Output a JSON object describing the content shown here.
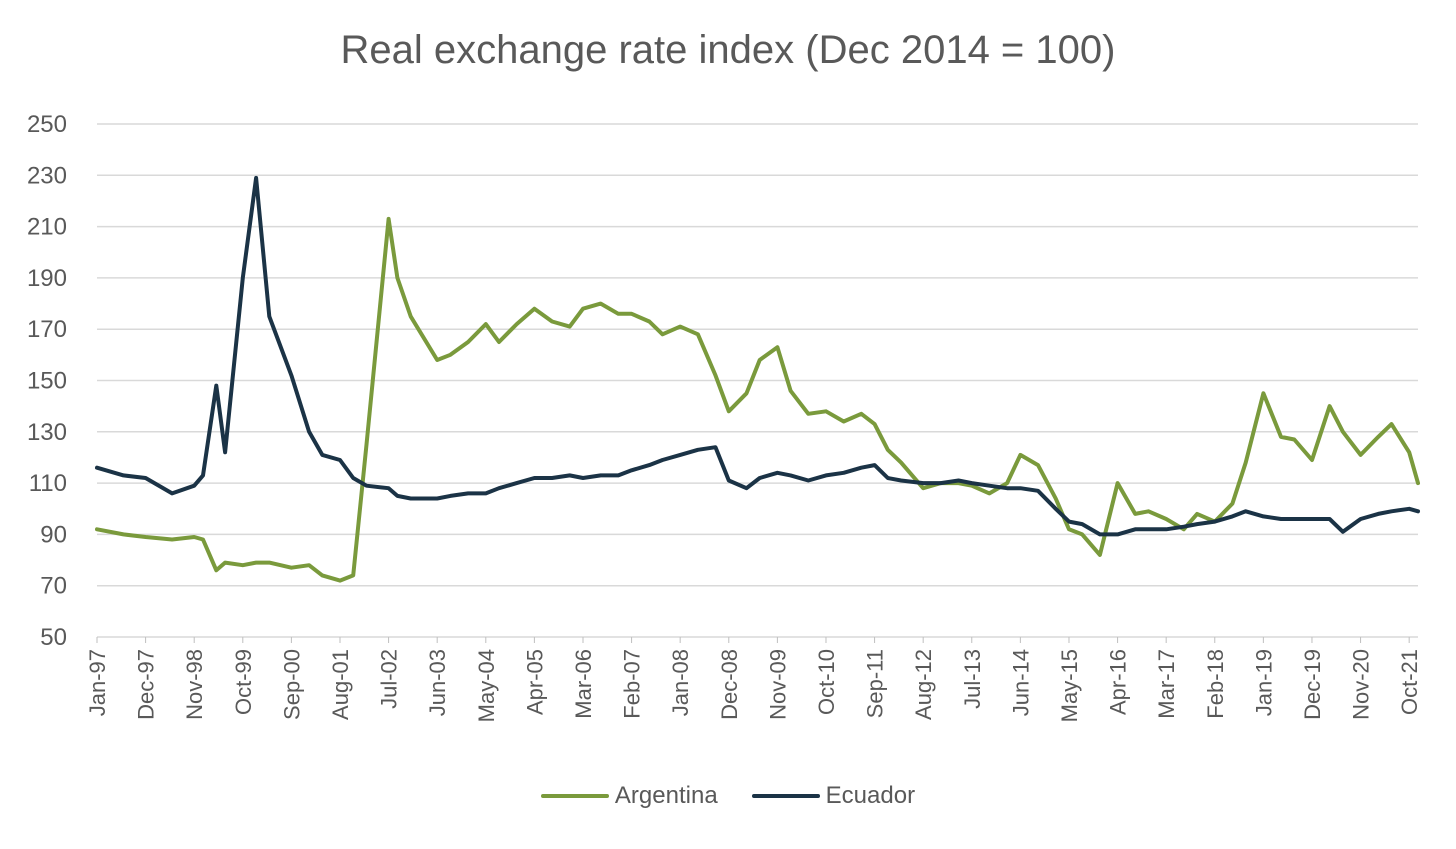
{
  "chart_data": {
    "type": "line",
    "title": "Real exchange rate index (Dec 2014 = 100)",
    "xlabel": "",
    "ylabel": "",
    "ylim": [
      50,
      250
    ],
    "yticks": [
      50,
      70,
      90,
      110,
      130,
      150,
      170,
      190,
      210,
      230,
      250
    ],
    "grid": true,
    "legend_position": "bottom",
    "x_tick_labels": [
      "Jan-97",
      "Dec-97",
      "Nov-98",
      "Oct-99",
      "Sep-00",
      "Aug-01",
      "Jul-02",
      "Jun-03",
      "May-04",
      "Apr-05",
      "Mar-06",
      "Feb-07",
      "Jan-08",
      "Dec-08",
      "Nov-09",
      "Oct-10",
      "Sep-11",
      "Aug-12",
      "Jul-13",
      "Jun-14",
      "May-15",
      "Apr-16",
      "Mar-17",
      "Feb-18",
      "Jan-19",
      "Dec-19",
      "Nov-20",
      "Oct-21"
    ],
    "x": [
      "Jan-97",
      "Jul-97",
      "Dec-97",
      "Jun-98",
      "Nov-98",
      "Jan-99",
      "Apr-99",
      "Jun-99",
      "Oct-99",
      "Jan-00",
      "Apr-00",
      "Sep-00",
      "Jan-01",
      "Apr-01",
      "Aug-01",
      "Nov-01",
      "Feb-02",
      "Jul-02",
      "Sep-02",
      "Dec-02",
      "Jun-03",
      "Sep-03",
      "Jan-04",
      "May-04",
      "Aug-04",
      "Dec-04",
      "Apr-05",
      "Aug-05",
      "Dec-05",
      "Mar-06",
      "Jul-06",
      "Nov-06",
      "Feb-07",
      "Jun-07",
      "Sep-07",
      "Jan-08",
      "May-08",
      "Sep-08",
      "Dec-08",
      "Apr-09",
      "Jul-09",
      "Nov-09",
      "Feb-10",
      "Jun-10",
      "Oct-10",
      "Feb-11",
      "Jun-11",
      "Sep-11",
      "Dec-11",
      "Mar-12",
      "Aug-12",
      "Dec-12",
      "Apr-13",
      "Jul-13",
      "Nov-13",
      "Mar-14",
      "Jun-14",
      "Oct-14",
      "Feb-15",
      "May-15",
      "Aug-15",
      "Dec-15",
      "Apr-16",
      "Aug-16",
      "Nov-16",
      "Mar-17",
      "Jul-17",
      "Oct-17",
      "Feb-18",
      "Jun-18",
      "Sep-18",
      "Jan-19",
      "May-19",
      "Aug-19",
      "Dec-19",
      "Apr-20",
      "Jul-20",
      "Nov-20",
      "Mar-21",
      "Jun-21",
      "Oct-21",
      "Dec-21"
    ],
    "series": [
      {
        "name": "Argentina",
        "color": "#7a9a3c",
        "values": [
          92,
          90,
          89,
          88,
          89,
          88,
          76,
          79,
          78,
          79,
          79,
          77,
          78,
          74,
          72,
          74,
          125,
          213,
          190,
          175,
          158,
          160,
          165,
          172,
          165,
          172,
          178,
          173,
          171,
          178,
          180,
          176,
          176,
          173,
          168,
          171,
          168,
          152,
          138,
          145,
          158,
          163,
          146,
          137,
          138,
          134,
          137,
          133,
          123,
          118,
          108,
          110,
          110,
          109,
          106,
          110,
          121,
          117,
          104,
          92,
          90,
          82,
          110,
          98,
          99,
          96,
          92,
          98,
          95,
          102,
          118,
          145,
          128,
          127,
          119,
          140,
          130,
          121,
          128,
          133,
          122,
          110
        ]
      },
      {
        "name": "Ecuador",
        "color": "#1b3346",
        "values": [
          116,
          113,
          112,
          106,
          109,
          113,
          148,
          122,
          190,
          229,
          175,
          152,
          130,
          121,
          119,
          112,
          109,
          108,
          105,
          104,
          104,
          105,
          106,
          106,
          108,
          110,
          112,
          112,
          113,
          112,
          113,
          113,
          115,
          117,
          119,
          121,
          123,
          124,
          111,
          108,
          112,
          114,
          113,
          111,
          113,
          114,
          116,
          117,
          112,
          111,
          110,
          110,
          111,
          110,
          109,
          108,
          108,
          107,
          100,
          95,
          94,
          90,
          90,
          92,
          92,
          92,
          93,
          94,
          95,
          97,
          99,
          97,
          96,
          96,
          96,
          96,
          91,
          96,
          98,
          99,
          100,
          99
        ]
      }
    ]
  }
}
